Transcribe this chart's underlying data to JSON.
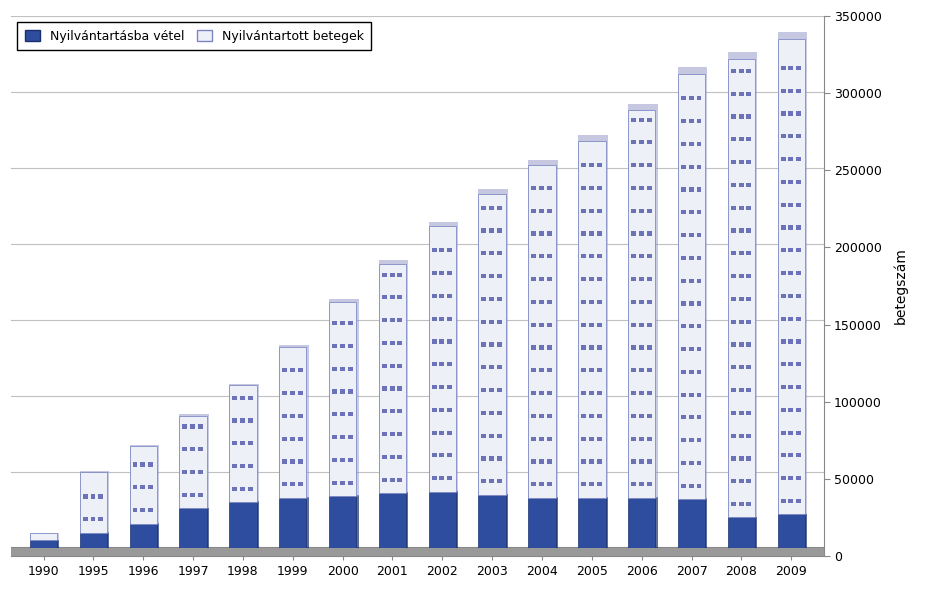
{
  "years": [
    "1990",
    "1995",
    "1996",
    "1997",
    "1998",
    "1999",
    "2000",
    "2001",
    "2002",
    "2003",
    "2004",
    "2005",
    "2006",
    "2007",
    "2008",
    "2009"
  ],
  "nyilvantartasba_vetel": [
    5000,
    10000,
    16000,
    26000,
    30000,
    33000,
    34000,
    36000,
    37000,
    35000,
    33000,
    33000,
    33000,
    32000,
    20000,
    22000
  ],
  "nyilvantartott_betegek": [
    10000,
    50000,
    67000,
    87000,
    107000,
    132000,
    162000,
    187000,
    212000,
    233000,
    252000,
    268000,
    288000,
    312000,
    322000,
    335000
  ],
  "vetel_color": "#2e4d9e",
  "betegek_face_color": "#dde0f0",
  "betegek_dot_color": "#6b72b8",
  "ylim_max": 350000,
  "yticks": [
    0,
    50000,
    100000,
    150000,
    200000,
    250000,
    300000,
    350000
  ],
  "ylabel": "betegszám",
  "legend_label1": "Nyilvántartásba vétel",
  "legend_label2": "Nyilvántartott betegek",
  "bar_width": 0.55,
  "bg_color": "#ffffff",
  "plot_bg": "#ffffff",
  "grid_color": "#c0c0c0",
  "floor_color": "#a0a0a0"
}
